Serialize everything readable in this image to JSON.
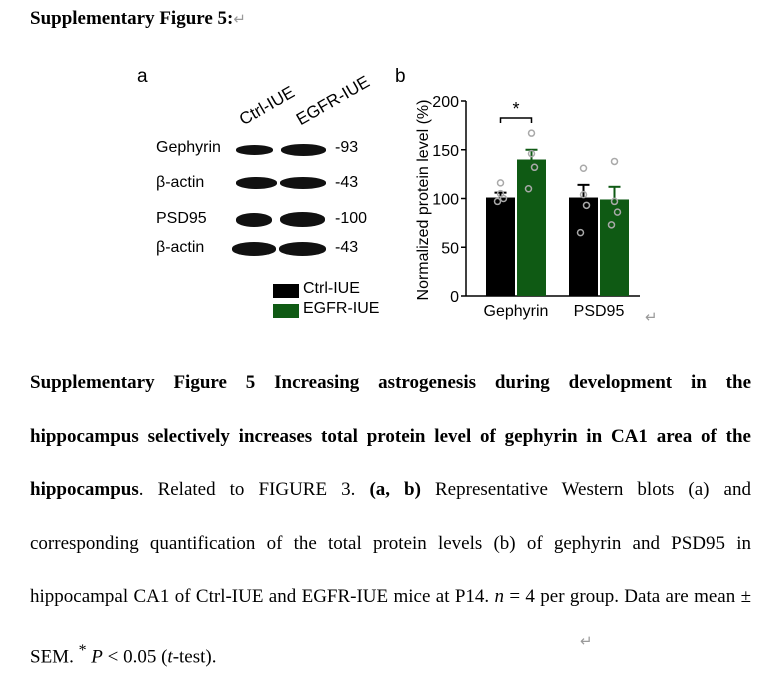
{
  "heading": {
    "text": "Supplementary Figure 5:",
    "return_mark": "↵"
  },
  "panel_a": {
    "label": "a",
    "lanes": [
      "Ctrl-IUE",
      "EGFR-IUE"
    ],
    "blots": [
      {
        "name": "Gephyrin",
        "mw": "-93"
      },
      {
        "name": "β-actin",
        "mw": "-43"
      },
      {
        "name": "PSD95",
        "mw": "-100"
      },
      {
        "name": "β-actin",
        "mw": "-43"
      }
    ],
    "legend": [
      {
        "label": "Ctrl-IUE",
        "color": "#000000"
      },
      {
        "label": "EGFR-IUE",
        "color": "#0f5a14"
      }
    ]
  },
  "panel_b": {
    "label": "b",
    "return_mark": "↵"
  },
  "chart_data": {
    "type": "bar",
    "title": "",
    "xlabel": "",
    "ylabel": "Normalized protein level (%)",
    "ylim": [
      0,
      200
    ],
    "yticks": [
      "0",
      "50",
      "100",
      "150",
      "200"
    ],
    "categories": [
      "Gephyrin",
      "PSD95"
    ],
    "series": [
      {
        "name": "Ctrl-IUE",
        "color": "#000000",
        "values": [
          101,
          101
        ],
        "sem": [
          5,
          13
        ],
        "points": [
          [
            97,
            100,
            105,
            116
          ],
          [
            65,
            93,
            104,
            131
          ]
        ]
      },
      {
        "name": "EGFR-IUE",
        "color": "#0f5a14",
        "values": [
          140,
          99
        ],
        "sem": [
          10,
          13
        ],
        "points": [
          [
            110,
            132,
            146,
            167
          ],
          [
            73,
            86,
            97,
            138
          ]
        ]
      }
    ],
    "annotations": [
      {
        "text": "*",
        "between": [
          "Ctrl-IUE",
          "EGFR-IUE"
        ],
        "category": "Gephyrin"
      }
    ]
  },
  "caption": {
    "title_bold": "Supplementary Figure 5 Increasing astrogenesis during development in the hippocampus selectively increases total protein level of gephyrin in CA1 area of the hippocampus",
    "t1": ". Related to FIGURE 3. ",
    "b_ab": "(a, b",
    "b_close": ")",
    "t2": " Representative Western blots (a) and corresponding quantification of the total protein levels (b) of gephyrin and PSD95 in hippocampal CA1 of Ctrl-IUE and EGFR-IUE mice at P14. ",
    "n_italic": "n",
    "t3": " = 4 per group. Data are mean ± SEM. ",
    "sup_star": "*",
    "p_italic": " P",
    "t4": " < 0.05 (",
    "t_italic": "t",
    "t5": "-test).",
    "return_mark": "↵"
  }
}
